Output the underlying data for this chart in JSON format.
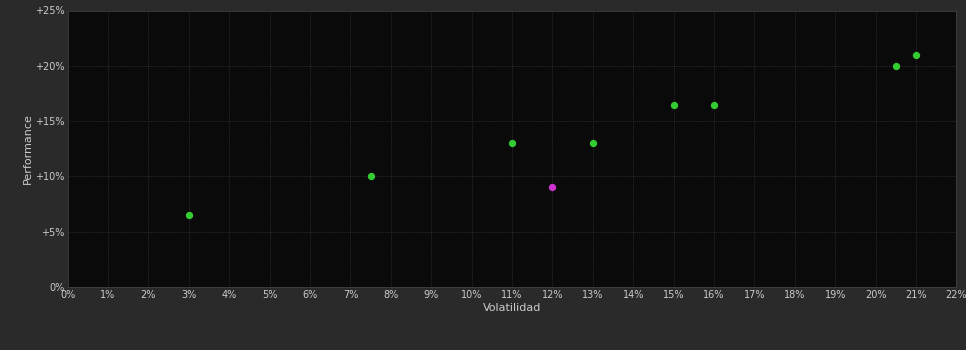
{
  "background_color": "#2a2a2a",
  "plot_bg_color": "#0a0a0a",
  "grid_color": "#444444",
  "grid_style": ":",
  "xlabel": "Volatilidad",
  "ylabel": "Performance",
  "xlim": [
    0,
    0.22
  ],
  "ylim": [
    0,
    0.25
  ],
  "xtick_labels": [
    "0%",
    "1%",
    "2%",
    "3%",
    "4%",
    "5%",
    "6%",
    "7%",
    "8%",
    "9%",
    "10%",
    "11%",
    "12%",
    "13%",
    "14%",
    "15%",
    "16%",
    "17%",
    "18%",
    "19%",
    "20%",
    "21%",
    "22%"
  ],
  "ytick_labels": [
    "0%",
    "+5%",
    "+10%",
    "+15%",
    "+20%",
    "+25%"
  ],
  "ytick_values": [
    0,
    0.05,
    0.1,
    0.15,
    0.2,
    0.25
  ],
  "xtick_values": [
    0.0,
    0.01,
    0.02,
    0.03,
    0.04,
    0.05,
    0.06,
    0.07,
    0.08,
    0.09,
    0.1,
    0.11,
    0.12,
    0.13,
    0.14,
    0.15,
    0.16,
    0.17,
    0.18,
    0.19,
    0.2,
    0.21,
    0.22
  ],
  "green_points": [
    [
      0.03,
      0.065
    ],
    [
      0.075,
      0.1
    ],
    [
      0.11,
      0.13
    ],
    [
      0.13,
      0.13
    ],
    [
      0.15,
      0.165
    ],
    [
      0.16,
      0.165
    ],
    [
      0.205,
      0.2
    ],
    [
      0.21,
      0.21
    ]
  ],
  "magenta_points": [
    [
      0.12,
      0.09
    ]
  ],
  "green_color": "#33cc33",
  "magenta_color": "#cc33cc",
  "marker_size": 18,
  "tick_color": "#cccccc",
  "tick_fontsize": 7,
  "label_fontsize": 8,
  "label_color": "#cccccc"
}
